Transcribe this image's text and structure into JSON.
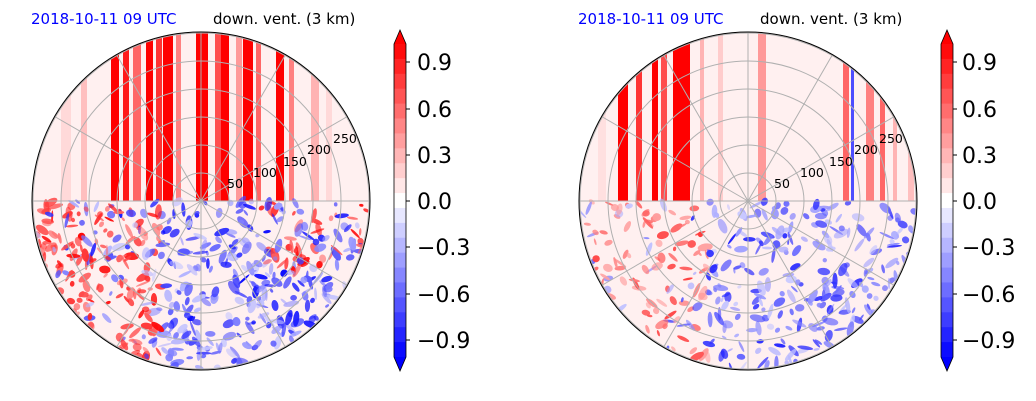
{
  "chart_data": [
    {
      "type": "heatmap",
      "title_left": "2018-10-11 09 UTC",
      "title_right": "down. vent. (3 km)",
      "range_ring_labels": [
        "50",
        "100",
        "150",
        "200",
        "250"
      ],
      "colorbar": {
        "ticks": [
          "0.9",
          "0.6",
          "0.3",
          "0.0",
          "−0.3",
          "−0.6",
          "−0.9"
        ],
        "tick_values": [
          0.9,
          0.6,
          0.3,
          0.0,
          -0.3,
          -0.6,
          -0.9
        ],
        "vmin": -1.0,
        "vmax": 1.0,
        "levels": 21,
        "extend": "both",
        "colormap": "bwr",
        "low_color": "#0000ff",
        "mid_color": "#ffffff",
        "high_color": "#ff0000"
      },
      "grid": true
    },
    {
      "type": "heatmap",
      "title_left": "2018-10-11 09 UTC",
      "title_right": "down. vent. (3 km)",
      "range_ring_labels": [
        "50",
        "100",
        "150",
        "200",
        "250"
      ],
      "colorbar": {
        "ticks": [
          "0.9",
          "0.6",
          "0.3",
          "0.0",
          "−0.3",
          "−0.6",
          "−0.9"
        ],
        "tick_values": [
          0.9,
          0.6,
          0.3,
          0.0,
          -0.3,
          -0.6,
          -0.9
        ],
        "vmin": -1.0,
        "vmax": 1.0,
        "levels": 21,
        "extend": "both",
        "colormap": "bwr",
        "low_color": "#0000ff",
        "mid_color": "#ffffff",
        "high_color": "#ff0000"
      },
      "grid": true
    }
  ]
}
